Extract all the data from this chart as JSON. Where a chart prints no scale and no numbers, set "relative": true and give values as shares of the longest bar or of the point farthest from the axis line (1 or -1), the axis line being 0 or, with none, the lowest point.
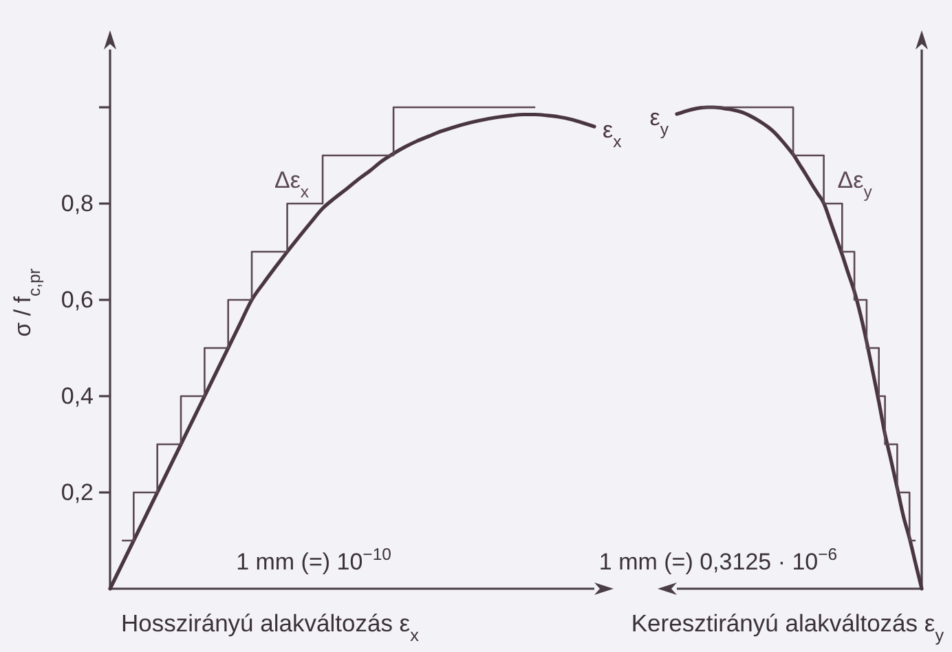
{
  "chart_data": [
    {
      "type": "line",
      "xlabel": "Hosszirányú alakváltozás ε$_{x}$",
      "ylabel": "σ / f$_{c,pr}$",
      "annotations": [
        "1 mm (=) 10$^{−10}$"
      ],
      "categories": [
        null,
        null,
        null,
        null,
        null,
        null,
        null,
        null,
        null,
        null,
        null,
        null,
        null,
        null,
        null,
        null,
        null,
        null,
        null,
        null,
        null,
        null,
        null,
        null,
        null,
        null,
        null,
        null,
        null,
        null,
        null,
        null,
        null,
        null,
        null,
        null,
        null,
        null,
        null,
        null,
        null,
        null
      ],
      "ylim": [
        0,
        1.12
      ],
      "yticks": [
        {
          "value": 0.2,
          "label": "0,2"
        },
        {
          "value": 0.4,
          "label": "0,4"
        },
        {
          "value": 0.6,
          "label": "0,6"
        },
        {
          "value": 0.8,
          "label": "0,8"
        },
        {
          "value": 1,
          "label": null
        }
      ],
      "tick_labels": "y",
      "series": [
        {
          "name": "ε$_{x}$",
          "color": "#4a3640",
          "values": [
            0,
            0.05,
            0.1,
            0.15,
            0.2,
            0.25,
            0.3,
            0.35,
            0.4,
            0.45,
            0.5,
            0.55,
            0.6,
            0.635,
            0.668,
            0.7,
            0.731,
            0.761,
            0.79,
            0.811,
            0.83,
            0.85,
            0.868,
            0.888,
            0.904,
            0.918,
            0.93,
            0.94,
            0.95,
            0.958,
            0.965,
            0.971,
            0.976,
            0.98,
            0.983,
            0.985,
            0.985,
            0.983,
            0.98,
            0.975,
            0.968,
            0.96
          ]
        },
        {
          "type": "step",
          "name": "Δε$_{x}$",
          "color": "#5a4850",
          "values": [
            null,
            0.1,
            0.2,
            0.2,
            0.3,
            0.3,
            0.4,
            0.4,
            0.5,
            0.5,
            0.6,
            0.6,
            0.7,
            0.7,
            0.7,
            0.8,
            0.8,
            0.8,
            0.9,
            0.9,
            0.9,
            0.9,
            0.9,
            0.9,
            1,
            1,
            1,
            1,
            1,
            1,
            1,
            1,
            1,
            1,
            1,
            1,
            1,
            null,
            null,
            null,
            null,
            null
          ]
        }
      ]
    },
    {
      "type": "line",
      "relative": true,
      "xlabel": "Keresztirányú alakváltozás ε$_{y}$",
      "annotations": [
        "1 mm (=) 0,3125 · 10$^{−6}$"
      ],
      "categories": [
        null,
        null,
        null,
        null,
        null,
        null,
        null,
        null,
        null,
        null,
        null,
        null,
        null,
        null,
        null,
        null,
        null,
        null,
        null,
        null,
        null,
        null,
        null,
        null,
        null,
        null,
        null,
        null,
        null,
        null,
        null,
        null,
        null,
        null,
        null,
        null,
        null,
        null,
        null,
        null,
        null
      ],
      "series": [
        {
          "name": "ε$_{y}$",
          "color": "#4a3640",
          "values": [
            0.986,
            0.99,
            0.994,
            0.997,
            0.999,
            1,
            1,
            0.999,
            0.997,
            0.995,
            0.992,
            0.988,
            0.982,
            0.975,
            0.967,
            0.958,
            0.947,
            0.933,
            0.918,
            0.902,
            0.882,
            0.862,
            0.841,
            0.821,
            0.801,
            0.766,
            0.73,
            0.694,
            0.655,
            0.617,
            0.569,
            0.513,
            0.451,
            0.388,
            0.321,
            0.266,
            0.209,
            0.151,
            0.105,
            0.052,
            0
          ]
        },
        {
          "type": "step",
          "name": "Δε$_{y}$",
          "color": "#5a4850",
          "values": [
            null,
            null,
            null,
            null,
            1,
            1,
            1,
            1,
            1,
            1,
            1,
            1,
            1,
            1,
            1,
            1,
            1,
            1,
            1,
            0.9,
            0.9,
            0.9,
            0.9,
            0.9,
            0.8,
            0.8,
            0.8,
            0.7,
            0.7,
            0.6,
            0.6,
            0.5,
            0.5,
            0.4,
            0.3,
            0.3,
            0.2,
            0.2,
            0.1,
            0.1,
            null
          ]
        }
      ]
    }
  ]
}
